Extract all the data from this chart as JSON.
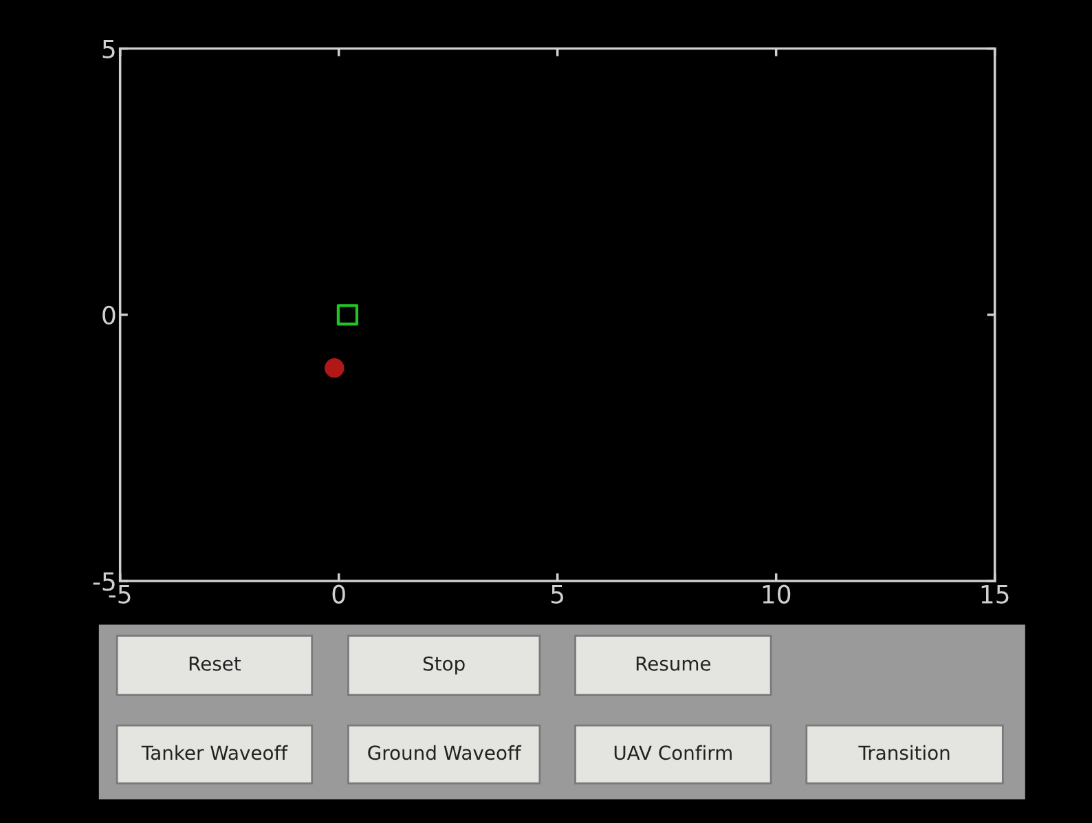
{
  "chart_data": {
    "type": "scatter",
    "xlim": [
      -5,
      15
    ],
    "ylim": [
      -5,
      5
    ],
    "xticks": [
      -5,
      0,
      5,
      10,
      15
    ],
    "yticks": [
      -5,
      0,
      5
    ],
    "grid": false,
    "series": [
      {
        "color": "#22c422",
        "marker": "square",
        "x": [
          0.2
        ],
        "values": [
          0
        ]
      },
      {
        "color": "#b01818",
        "marker": "circle",
        "x": [
          -0.1
        ],
        "values": [
          -1
        ]
      }
    ],
    "annotations": [
      "Reset",
      "Stop",
      "Resume",
      "Tanker Waveoff",
      "Ground Waveoff",
      "UAV Confirm",
      "Transition"
    ]
  }
}
